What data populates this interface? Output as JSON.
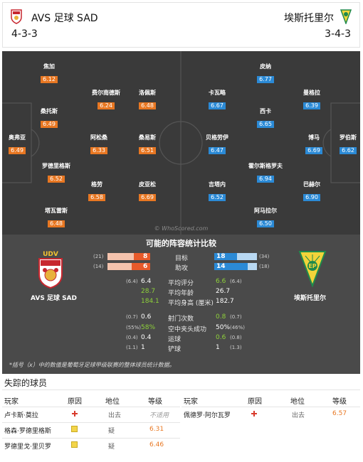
{
  "header": {
    "home_team": "AVS 足球 SAD",
    "home_formation": "4-3-3",
    "away_team": "埃斯托里尔",
    "away_formation": "3-4-3"
  },
  "pitch": {
    "watermark": "© WhoScored.com",
    "home_players": [
      {
        "name": "焦加",
        "rating": "6.12"
      },
      {
        "name": "费尔南德斯",
        "rating": "6.24"
      },
      {
        "name": "洛佩斯",
        "rating": "6.48"
      },
      {
        "name": "桑托斯",
        "rating": "6.49"
      },
      {
        "name": "奥弗亚",
        "rating": "6.49"
      },
      {
        "name": "阿松桑",
        "rating": "6.33"
      },
      {
        "name": "桑易斯",
        "rating": "6.51"
      },
      {
        "name": "罗德里格斯",
        "rating": "6.52"
      },
      {
        "name": "格劳",
        "rating": "6.58"
      },
      {
        "name": "皮亚松",
        "rating": "6.69"
      },
      {
        "name": "塔瓦雷斯",
        "rating": "6.48"
      }
    ],
    "away_players": [
      {
        "name": "皮纳",
        "rating": "6.77"
      },
      {
        "name": "卡瓦略",
        "rating": "6.67"
      },
      {
        "name": "曼格拉",
        "rating": "6.39"
      },
      {
        "name": "西卡",
        "rating": "6.65"
      },
      {
        "name": "贝格劳伊",
        "rating": "6.47"
      },
      {
        "name": "博马",
        "rating": "6.69"
      },
      {
        "name": "罗伯斯",
        "rating": "6.62"
      },
      {
        "name": "霍尔斯格罗夫",
        "rating": "6.94"
      },
      {
        "name": "吉塔内",
        "rating": "6.52"
      },
      {
        "name": "巴赫尔",
        "rating": "6.90"
      },
      {
        "name": "阿马拉尔",
        "rating": "6.50"
      }
    ]
  },
  "comparison": {
    "title": "可能的阵容统计比较",
    "home_label": "AVS 足球 SAD",
    "away_label": "埃斯托里尔",
    "goals": {
      "label": "目标",
      "home": "8",
      "home_total": "(21)",
      "away": "18",
      "away_total": "(34)",
      "home_frac": 0.38,
      "away_frac": 0.53
    },
    "assists": {
      "label": "助攻",
      "home": "6",
      "home_total": "(14)",
      "away": "14",
      "away_total": "(18)",
      "home_frac": 0.43,
      "away_frac": 0.78
    },
    "stats": [
      {
        "label": "平均评分",
        "home_sub": "(6.4)",
        "home": "6.4",
        "away": "6.6",
        "away_sub": "(6.4)",
        "home_green": false,
        "away_green": true
      },
      {
        "label": "平均年龄",
        "home_sub": "",
        "home": "28.7",
        "away": "26.7",
        "away_sub": "",
        "home_green": true,
        "away_green": false
      },
      {
        "label": "平均身高 (厘米)",
        "home_sub": "",
        "home": "184.1",
        "away": "182.7",
        "away_sub": "",
        "home_green": true,
        "away_green": false
      },
      {
        "label": "射门次数",
        "home_sub": "(0.7)",
        "home": "0.6",
        "away": "0.8",
        "away_sub": "(0.7)",
        "home_green": false,
        "away_green": true
      },
      {
        "label": "空中夹头成功",
        "home_sub": "(55%)",
        "home": "58%",
        "away": "50%",
        "away_sub": "(46%)",
        "home_green": true,
        "away_green": false
      },
      {
        "label": "运球",
        "home_sub": "(0.4)",
        "home": "0.4",
        "away": "0.6",
        "away_sub": "(0.8)",
        "home_green": false,
        "away_green": true
      },
      {
        "label": "铲球",
        "home_sub": "(1.1)",
        "home": "1",
        "away": "1",
        "away_sub": "(1.3)",
        "home_green": false,
        "away_green": false
      }
    ],
    "footnote": "*括号（x）中的数值是葡萄牙足球甲级联赛的整体球员统计数据。"
  },
  "missing": {
    "title": "失踪的球员",
    "headers": {
      "player": "玩家",
      "reason": "原因",
      "status": "地位",
      "rating": "等级"
    },
    "home": [
      {
        "player": "卢卡斯·莫拉",
        "reason": "injury",
        "status": "出去",
        "rating": "不适用"
      },
      {
        "player": "格森·罗德里格斯",
        "reason": "doubtful",
        "status": "疑",
        "rating": "6.31"
      },
      {
        "player": "罗德里戈·里贝罗",
        "reason": "doubtful",
        "status": "疑",
        "rating": "6.46"
      }
    ],
    "away": [
      {
        "player": "佩德罗·阿尔瓦罗",
        "reason": "injury",
        "status": "出去",
        "rating": "6.57"
      }
    ]
  },
  "colors": {
    "home_rating": "#e87722",
    "away_rating": "#2b8ad6",
    "pitch": "#3a3a3a",
    "highlight": "#8ed13a"
  }
}
